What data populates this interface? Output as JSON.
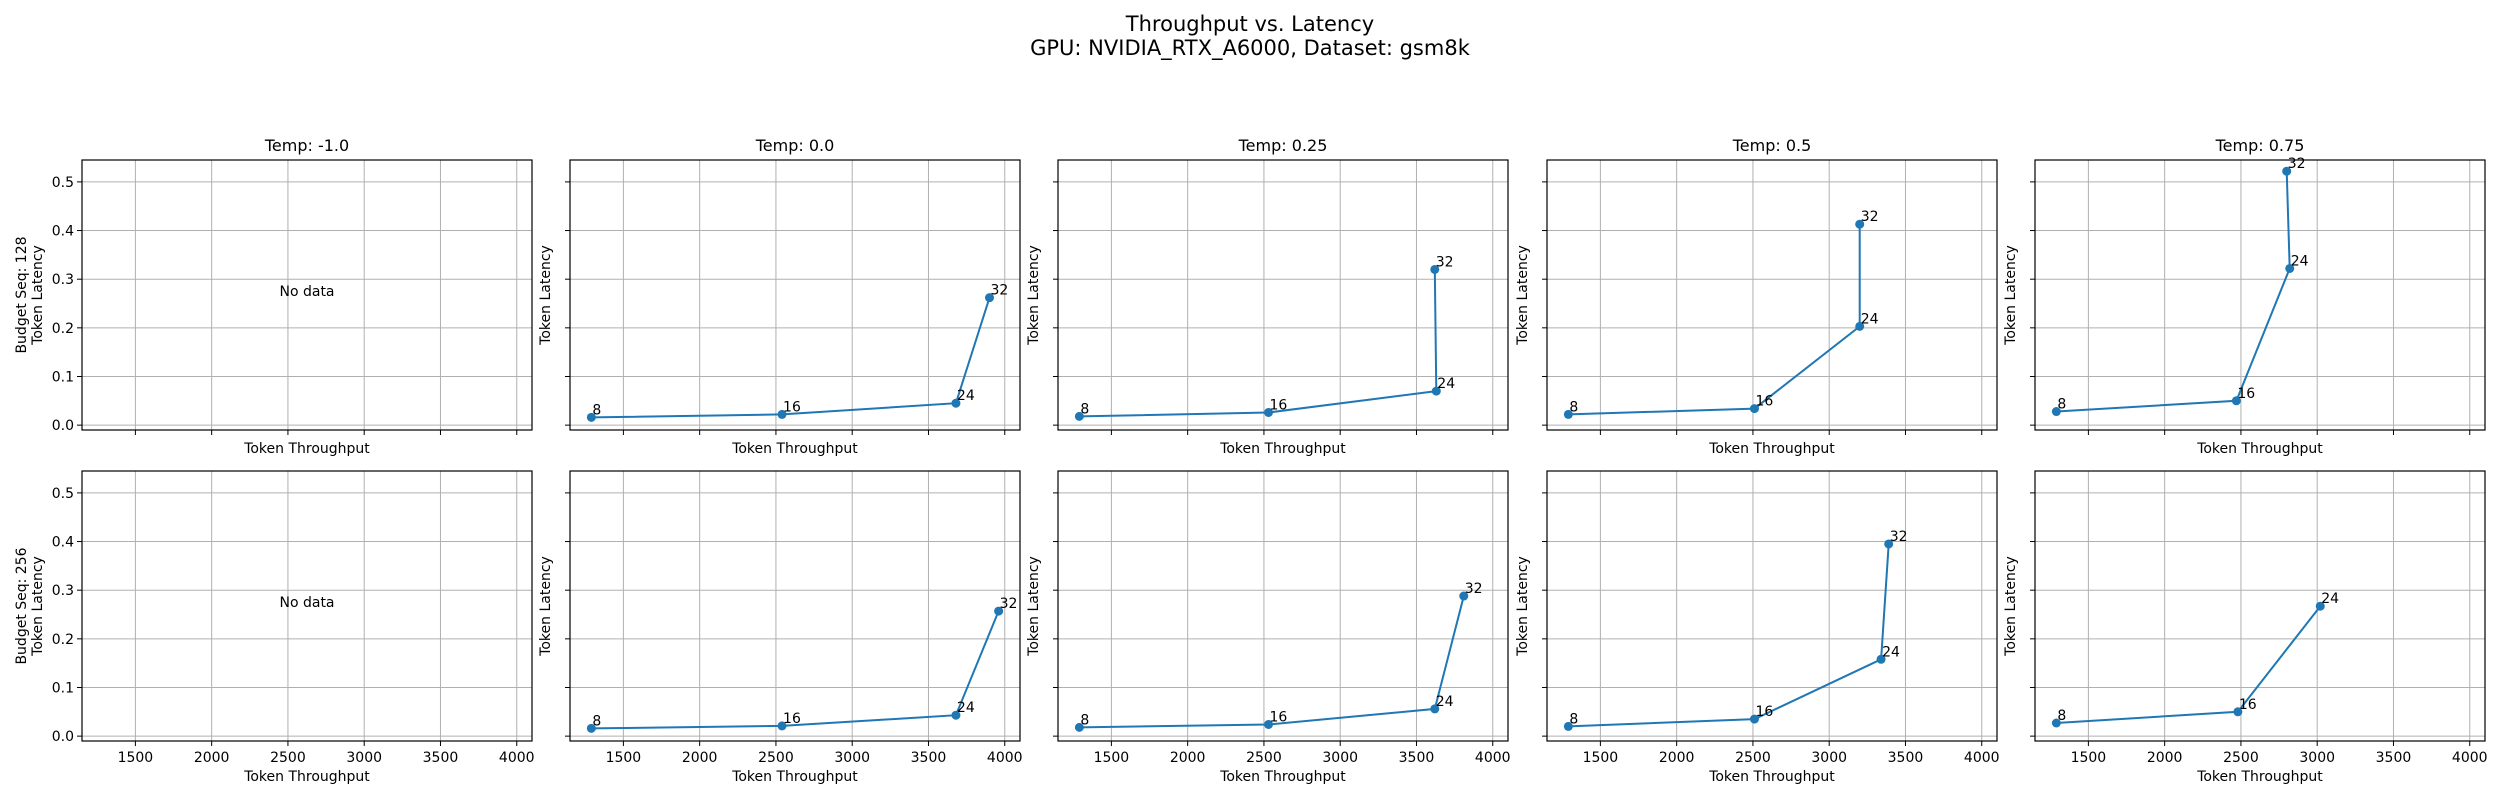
{
  "suptitle": {
    "line1": "Throughput vs. Latency",
    "line2": "GPU: NVIDIA_RTX_A6000, Dataset: gsm8k"
  },
  "colors": {
    "series": "#1f77b4",
    "grid": "#b0b0b0",
    "axis": "#000000"
  },
  "chart_data": {
    "type": "line",
    "layout": "grid",
    "rows": 2,
    "cols": 5,
    "xlim": [
      1150,
      4100
    ],
    "ylim": [
      -0.01,
      0.545
    ],
    "xticks": [
      1500,
      2000,
      2500,
      3000,
      3500,
      4000
    ],
    "yticks": [
      0.0,
      0.1,
      0.2,
      0.3,
      0.4,
      0.5
    ],
    "xlabel": "Token Throughput",
    "ylabel": "Token Latency",
    "column_titles": [
      "Temp: -1.0",
      "Temp: 0.0",
      "Temp: 0.25",
      "Temp: 0.5",
      "Temp: 0.75"
    ],
    "row_labels": [
      "Budget Seq: 128",
      "Budget Seq: 256"
    ],
    "no_data_text": "No data",
    "grid": true,
    "panels": [
      {
        "row": 0,
        "col": 0,
        "points": []
      },
      {
        "row": 0,
        "col": 1,
        "points": [
          {
            "x": 1290,
            "y": 0.016,
            "label": "8"
          },
          {
            "x": 2540,
            "y": 0.022,
            "label": "16"
          },
          {
            "x": 3680,
            "y": 0.045,
            "label": "24"
          },
          {
            "x": 3900,
            "y": 0.262,
            "label": "32"
          }
        ]
      },
      {
        "row": 0,
        "col": 2,
        "points": [
          {
            "x": 1290,
            "y": 0.018,
            "label": "8"
          },
          {
            "x": 2530,
            "y": 0.026,
            "label": "16"
          },
          {
            "x": 3630,
            "y": 0.07,
            "label": "24"
          },
          {
            "x": 3620,
            "y": 0.32,
            "label": "32"
          }
        ]
      },
      {
        "row": 0,
        "col": 3,
        "points": [
          {
            "x": 1290,
            "y": 0.022,
            "label": "8"
          },
          {
            "x": 2510,
            "y": 0.034,
            "label": "16"
          },
          {
            "x": 3200,
            "y": 0.203,
            "label": "24"
          },
          {
            "x": 3200,
            "y": 0.413,
            "label": "32"
          }
        ]
      },
      {
        "row": 0,
        "col": 4,
        "points": [
          {
            "x": 1290,
            "y": 0.028,
            "label": "8"
          },
          {
            "x": 2470,
            "y": 0.05,
            "label": "16"
          },
          {
            "x": 2820,
            "y": 0.322,
            "label": "24"
          },
          {
            "x": 2800,
            "y": 0.522,
            "label": "32"
          }
        ]
      },
      {
        "row": 1,
        "col": 0,
        "points": []
      },
      {
        "row": 1,
        "col": 1,
        "points": [
          {
            "x": 1290,
            "y": 0.016,
            "label": "8"
          },
          {
            "x": 2540,
            "y": 0.021,
            "label": "16"
          },
          {
            "x": 3680,
            "y": 0.043,
            "label": "24"
          },
          {
            "x": 3960,
            "y": 0.257,
            "label": "32"
          }
        ]
      },
      {
        "row": 1,
        "col": 2,
        "points": [
          {
            "x": 1290,
            "y": 0.018,
            "label": "8"
          },
          {
            "x": 2530,
            "y": 0.024,
            "label": "16"
          },
          {
            "x": 3620,
            "y": 0.056,
            "label": "24"
          },
          {
            "x": 3810,
            "y": 0.288,
            "label": "32"
          }
        ]
      },
      {
        "row": 1,
        "col": 3,
        "points": [
          {
            "x": 1290,
            "y": 0.02,
            "label": "8"
          },
          {
            "x": 2510,
            "y": 0.035,
            "label": "16"
          },
          {
            "x": 3340,
            "y": 0.158,
            "label": "24"
          },
          {
            "x": 3390,
            "y": 0.395,
            "label": "32"
          }
        ]
      },
      {
        "row": 1,
        "col": 4,
        "points": [
          {
            "x": 1290,
            "y": 0.027,
            "label": "8"
          },
          {
            "x": 2480,
            "y": 0.05,
            "label": "16"
          },
          {
            "x": 3020,
            "y": 0.267,
            "label": "24"
          }
        ]
      }
    ]
  }
}
